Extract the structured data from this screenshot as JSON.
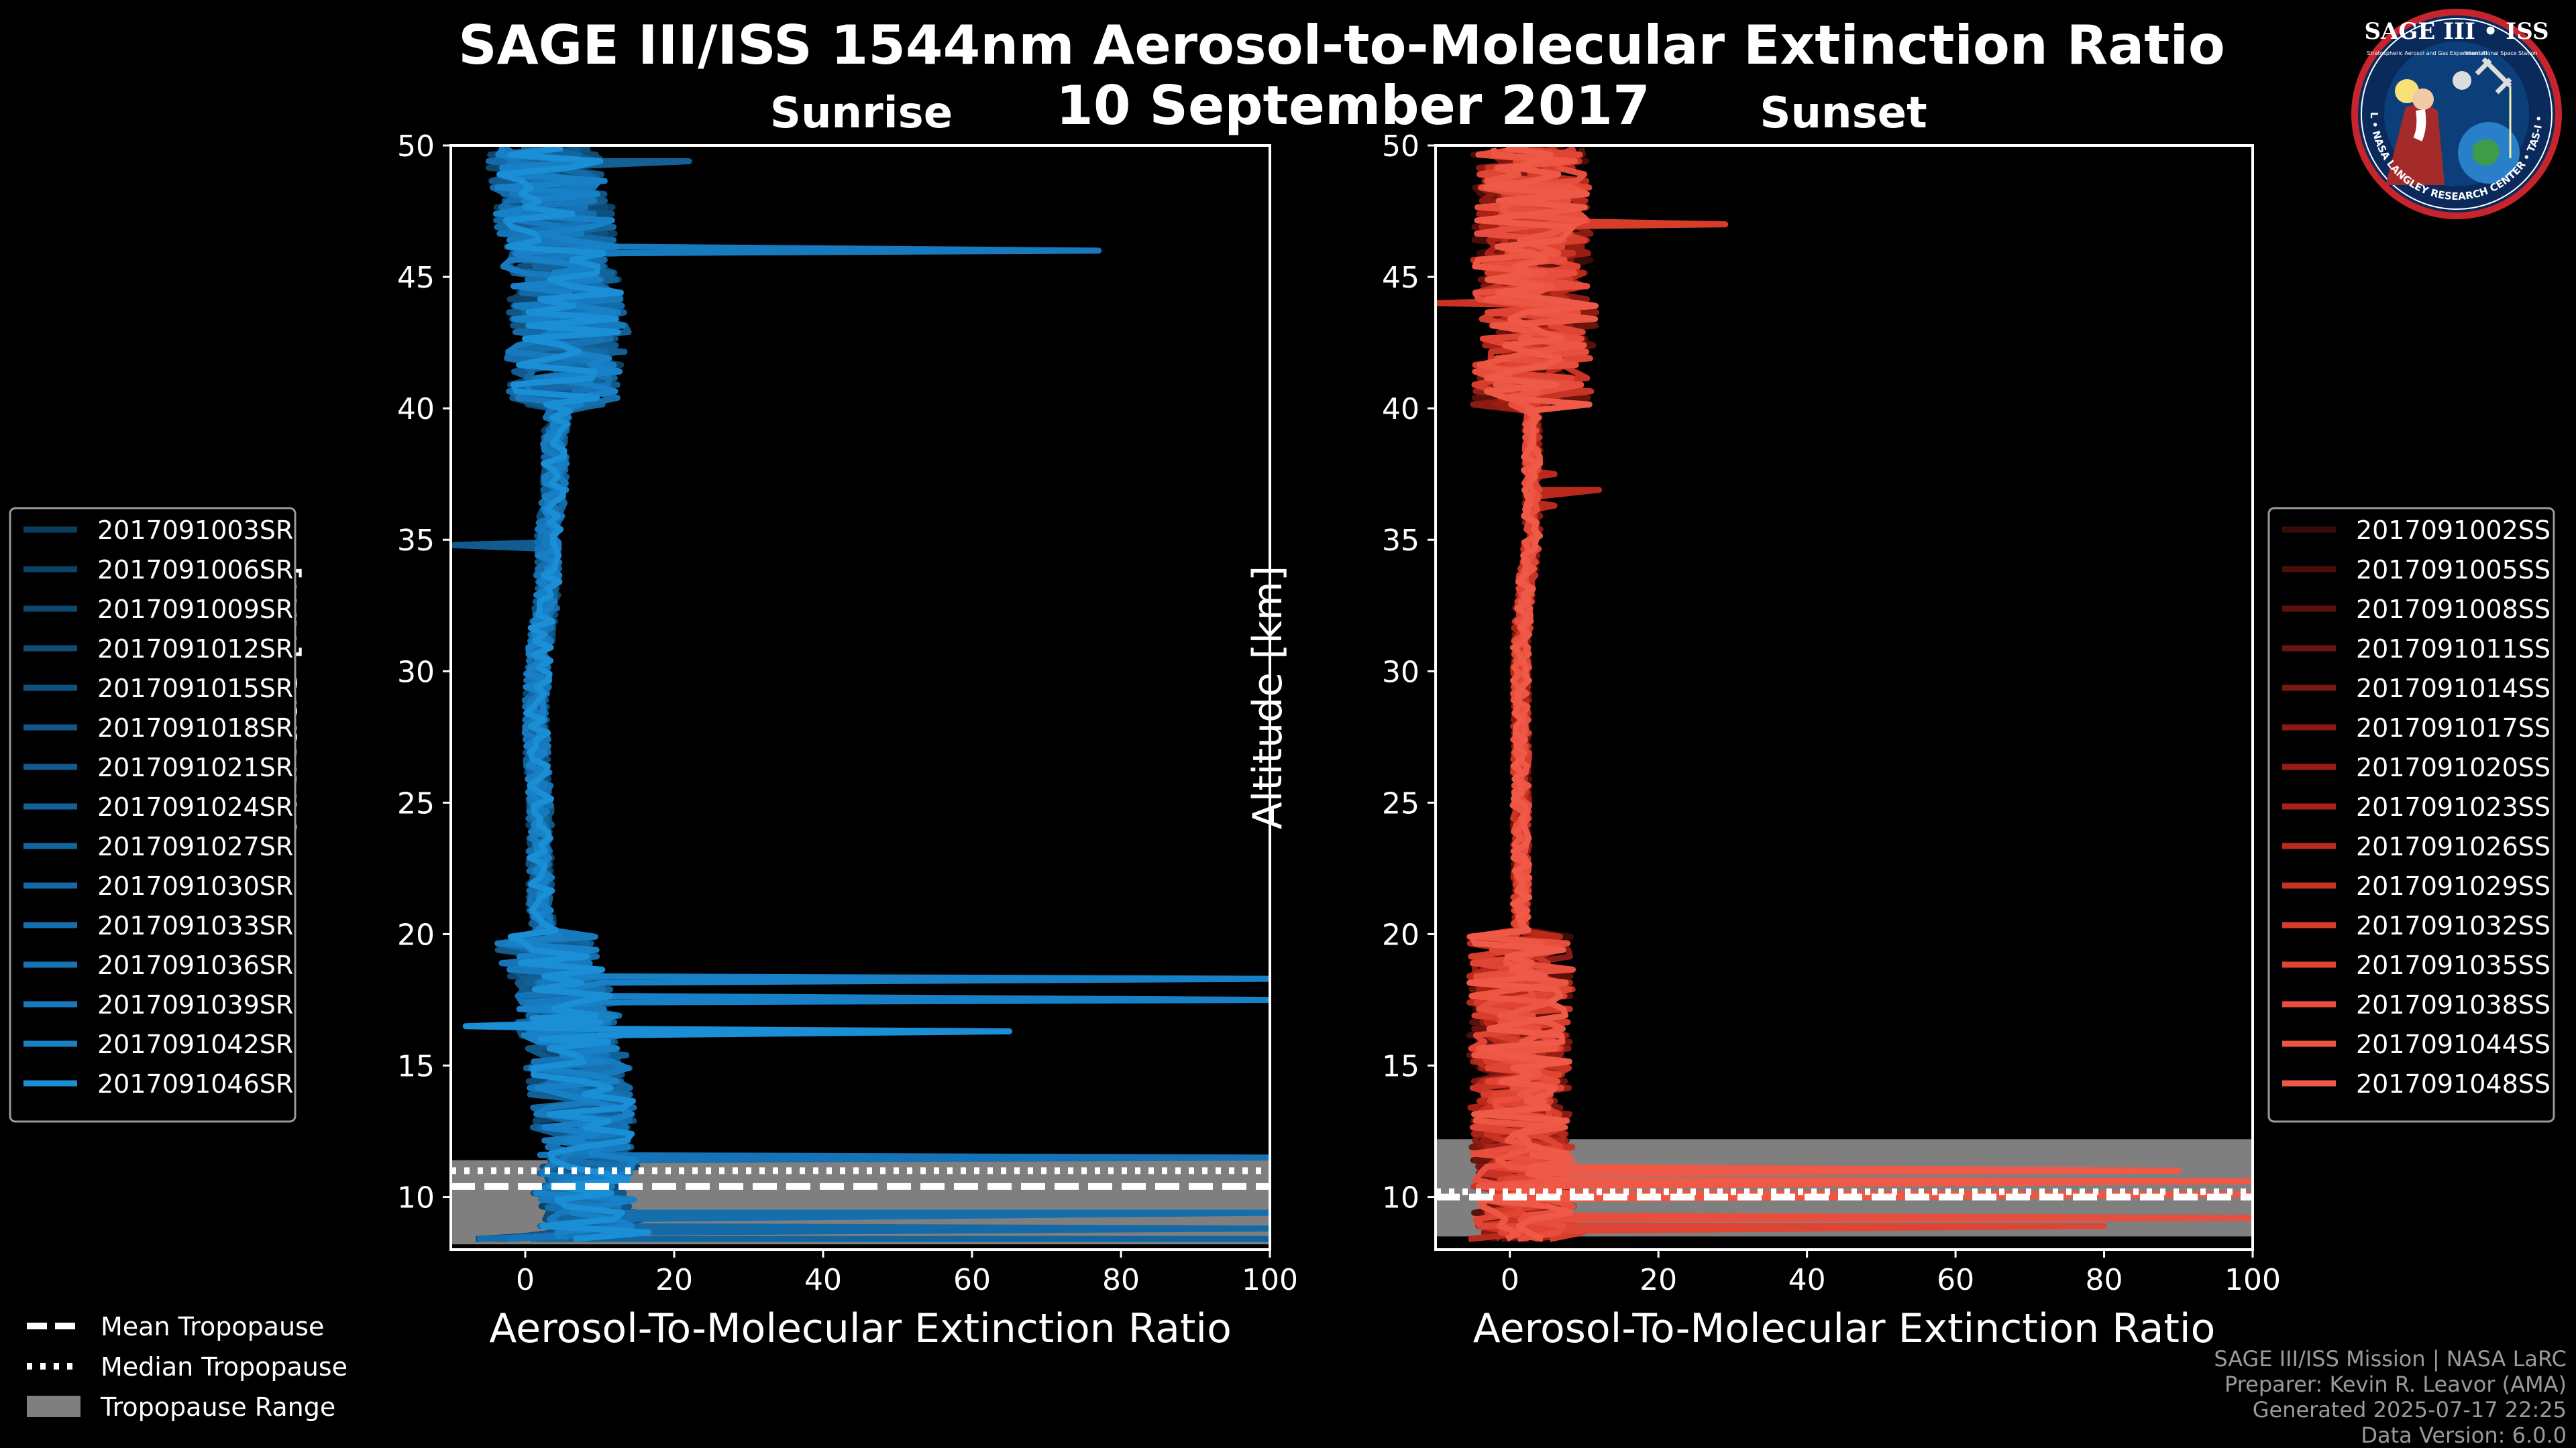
{
  "title_line1": "SAGE III/ISS 1544nm Aerosol-to-Molecular Extinction Ratio",
  "title_line2": "10 September 2017",
  "logo": {
    "name": "SAGE III • ISS",
    "subtitle": "Stratospheric Aerosol and Gas Experiment III",
    "station": "International Space Station",
    "ring": "BALL • NASA LANGLEY RESEARCH CENTER • TAS-I • ESA"
  },
  "legend_tropopause": [
    "Mean Tropopause",
    "Median Tropopause",
    "Tropopause Range"
  ],
  "credits": [
    "SAGE III/ISS Mission | NASA LaRC",
    "Preparer: Kevin R. Leavor (AMA)",
    "Generated 2025-07-17 22:25",
    "Data Version: 6.0.0"
  ],
  "colors": {
    "sunrise": "#1a8fd6",
    "sunset": "#ee5a47",
    "tropo_range": "#7f7f7f"
  },
  "chart_data": [
    {
      "type": "line",
      "panel": "Sunrise",
      "title": "Sunrise",
      "xlabel": "Aerosol-To-Molecular Extinction Ratio",
      "ylabel": "Altitude [km]",
      "xlim": [
        -10,
        100
      ],
      "ylim": [
        8,
        50
      ],
      "xticks": [
        0,
        20,
        40,
        60,
        80,
        100
      ],
      "yticks": [
        10,
        15,
        20,
        25,
        30,
        35,
        40,
        45,
        50
      ],
      "tropopause": {
        "mean": 10.4,
        "median": 11.0,
        "range": [
          8.2,
          11.4
        ]
      },
      "series_names": [
        "2017091003SR",
        "2017091006SR",
        "2017091009SR",
        "2017091012SR",
        "2017091015SR",
        "2017091018SR",
        "2017091021SR",
        "2017091024SR",
        "2017091027SR",
        "2017091030SR",
        "2017091033SR",
        "2017091036SR",
        "2017091039SR",
        "2017091042SR",
        "2017091046SR"
      ],
      "series_colors": [
        "#0b3d5e",
        "#0c4266",
        "#0d476e",
        "#0e4c76",
        "#0f517e",
        "#105686",
        "#115b8e",
        "#126096",
        "#13659e",
        "#146aa6",
        "#156fae",
        "#1674b6",
        "#177abe",
        "#1880c6",
        "#1a8fd6"
      ],
      "profile_altitude": [
        8.5,
        9.5,
        10.5,
        11.5,
        12.5,
        13.5,
        14.5,
        15.5,
        16.5,
        17.5,
        18.5,
        19.5,
        21,
        23,
        25,
        27,
        29,
        31,
        33,
        35,
        37,
        39,
        41,
        43,
        45,
        46,
        47,
        48,
        49,
        50
      ],
      "profile_mean": [
        10,
        8,
        7,
        9,
        8,
        8,
        7,
        7,
        6,
        6,
        4,
        3,
        2,
        2,
        2,
        1.5,
        1.5,
        2,
        3,
        3,
        4,
        4,
        5,
        6,
        5,
        5,
        4,
        4,
        3,
        3
      ],
      "spikes": [
        {
          "series": 14,
          "points": [
            [
              16.8,
              1
            ],
            [
              16.5,
              -8
            ],
            [
              16.3,
              65
            ],
            [
              16.0,
              2
            ]
          ]
        },
        {
          "series": 13,
          "points": [
            [
              18.9,
              2
            ],
            [
              18.3,
              100
            ],
            [
              17.9,
              4
            ],
            [
              17.5,
              100
            ],
            [
              17.1,
              3
            ]
          ]
        },
        {
          "series": 12,
          "points": [
            [
              46.3,
              4
            ],
            [
              46.0,
              77
            ],
            [
              45.7,
              3
            ]
          ]
        },
        {
          "series": 11,
          "points": [
            [
              11.6,
              2
            ],
            [
              11.5,
              100
            ]
          ]
        },
        {
          "series": 10,
          "points": [
            [
              9.6,
              3
            ],
            [
              9.4,
              100
            ]
          ]
        },
        {
          "series": 9,
          "points": [
            [
              8.9,
              2
            ],
            [
              8.8,
              100
            ]
          ]
        },
        {
          "series": 8,
          "points": [
            [
              8.5,
              4
            ],
            [
              8.4,
              100
            ]
          ]
        },
        {
          "series": 7,
          "points": [
            [
              49.5,
              6
            ],
            [
              49.4,
              22
            ]
          ]
        },
        {
          "series": 6,
          "points": [
            [
              35.0,
              2
            ],
            [
              34.8,
              -10
            ]
          ]
        }
      ]
    },
    {
      "type": "line",
      "panel": "Sunset",
      "title": "Sunset",
      "xlabel": "Aerosol-To-Molecular Extinction Ratio",
      "ylabel": "Altitude [km]",
      "xlim": [
        -10,
        100
      ],
      "ylim": [
        8,
        50
      ],
      "xticks": [
        0,
        20,
        40,
        60,
        80,
        100
      ],
      "yticks": [
        10,
        15,
        20,
        25,
        30,
        35,
        40,
        45,
        50
      ],
      "tropopause": {
        "mean": 10.0,
        "median": 10.2,
        "range": [
          8.5,
          12.2
        ]
      },
      "series_names": [
        "2017091002SS",
        "2017091005SS",
        "2017091008SS",
        "2017091011SS",
        "2017091014SS",
        "2017091017SS",
        "2017091020SS",
        "2017091023SS",
        "2017091026SS",
        "2017091029SS",
        "2017091032SS",
        "2017091035SS",
        "2017091038SS",
        "2017091044SS",
        "2017091048SS"
      ],
      "series_colors": [
        "#3a0b08",
        "#4a0e0a",
        "#5a110c",
        "#6a140e",
        "#7a1710",
        "#8a1a12",
        "#9a1d14",
        "#aa2216",
        "#ba2a1c",
        "#c93323",
        "#d63d2b",
        "#e04534",
        "#e84e3d",
        "#ed5642",
        "#ee5a47"
      ],
      "profile_altitude": [
        8.5,
        9.5,
        10.5,
        11.5,
        12.5,
        13.5,
        14.5,
        15.5,
        16.5,
        17.5,
        18.5,
        19.5,
        21,
        23,
        25,
        27,
        29,
        31,
        33,
        35,
        37,
        39,
        41,
        43,
        45,
        46,
        47,
        48,
        49,
        50
      ],
      "profile_mean": [
        3,
        2,
        2,
        2,
        1.5,
        1.5,
        1.5,
        1.5,
        1.5,
        1.5,
        1.5,
        1.5,
        1.5,
        1.5,
        1.5,
        1.5,
        1.5,
        1.5,
        2,
        3,
        3,
        3,
        3,
        4,
        3,
        3,
        3,
        3,
        3,
        3
      ],
      "spikes": [
        {
          "series": 14,
          "points": [
            [
              11.6,
              3
            ],
            [
              11.0,
              90
            ],
            [
              10.6,
              100
            ]
          ]
        },
        {
          "series": 13,
          "points": [
            [
              10.3,
              2
            ],
            [
              10.1,
              100
            ]
          ]
        },
        {
          "series": 12,
          "points": [
            [
              9.3,
              2
            ],
            [
              9.2,
              100
            ]
          ]
        },
        {
          "series": 11,
          "points": [
            [
              8.7,
              2
            ],
            [
              8.9,
              80
            ]
          ]
        },
        {
          "series": 10,
          "points": [
            [
              47.2,
              4
            ],
            [
              47.0,
              29
            ],
            [
              46.7,
              3
            ]
          ]
        },
        {
          "series": 9,
          "points": [
            [
              44.3,
              -4
            ],
            [
              44.0,
              -10
            ]
          ]
        },
        {
          "series": 8,
          "points": [
            [
              37.5,
              6
            ],
            [
              36.9,
              12
            ],
            [
              36.3,
              6
            ]
          ]
        }
      ]
    }
  ]
}
